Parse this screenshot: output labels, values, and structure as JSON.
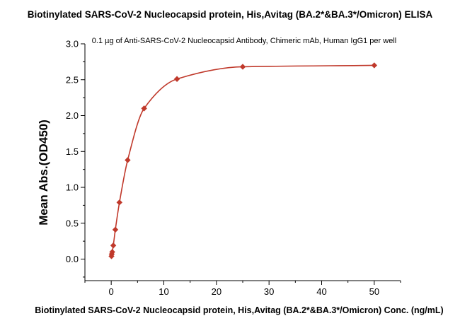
{
  "chart_data": {
    "type": "scatter",
    "title": "Biotinylated SARS-CoV-2 Nucleocapsid protein, His,Avitag (BA.2*&BA.3*/Omicron) ELISA",
    "subtitle": "0.1 µg of Anti-SARS-CoV-2 Nucleocapsid Antibody, Chimeric mAb, Human IgG1 per well",
    "xlabel": "Biotinylated SARS-CoV-2 Nucleocapsid protein, His,Avitag (BA.2*&BA.3*/Omicron) Conc. (ng/mL)",
    "ylabel": "Mean Abs.(OD450)",
    "xlim": [
      -5,
      55
    ],
    "ylim": [
      -0.3,
      3.0
    ],
    "x_ticks": [
      0,
      10,
      20,
      30,
      40,
      50
    ],
    "y_ticks": [
      0.0,
      0.5,
      1.0,
      1.5,
      2.0,
      2.5,
      3.0
    ],
    "x_tick_labels": [
      "0",
      "10",
      "20",
      "30",
      "40",
      "50"
    ],
    "y_tick_labels": [
      "0.0",
      "0.5",
      "1.0",
      "1.5",
      "2.0",
      "2.5",
      "3.0"
    ],
    "grid": false,
    "color": "#c0392b",
    "series": [
      {
        "marker": "diamond",
        "x": [
          0.049,
          0.098,
          0.195,
          0.391,
          0.781,
          1.563,
          3.125,
          6.25,
          12.5,
          25,
          50
        ],
        "y": [
          0.04,
          0.07,
          0.1,
          0.19,
          0.41,
          0.79,
          1.38,
          2.1,
          2.51,
          2.68,
          2.7
        ]
      }
    ]
  }
}
